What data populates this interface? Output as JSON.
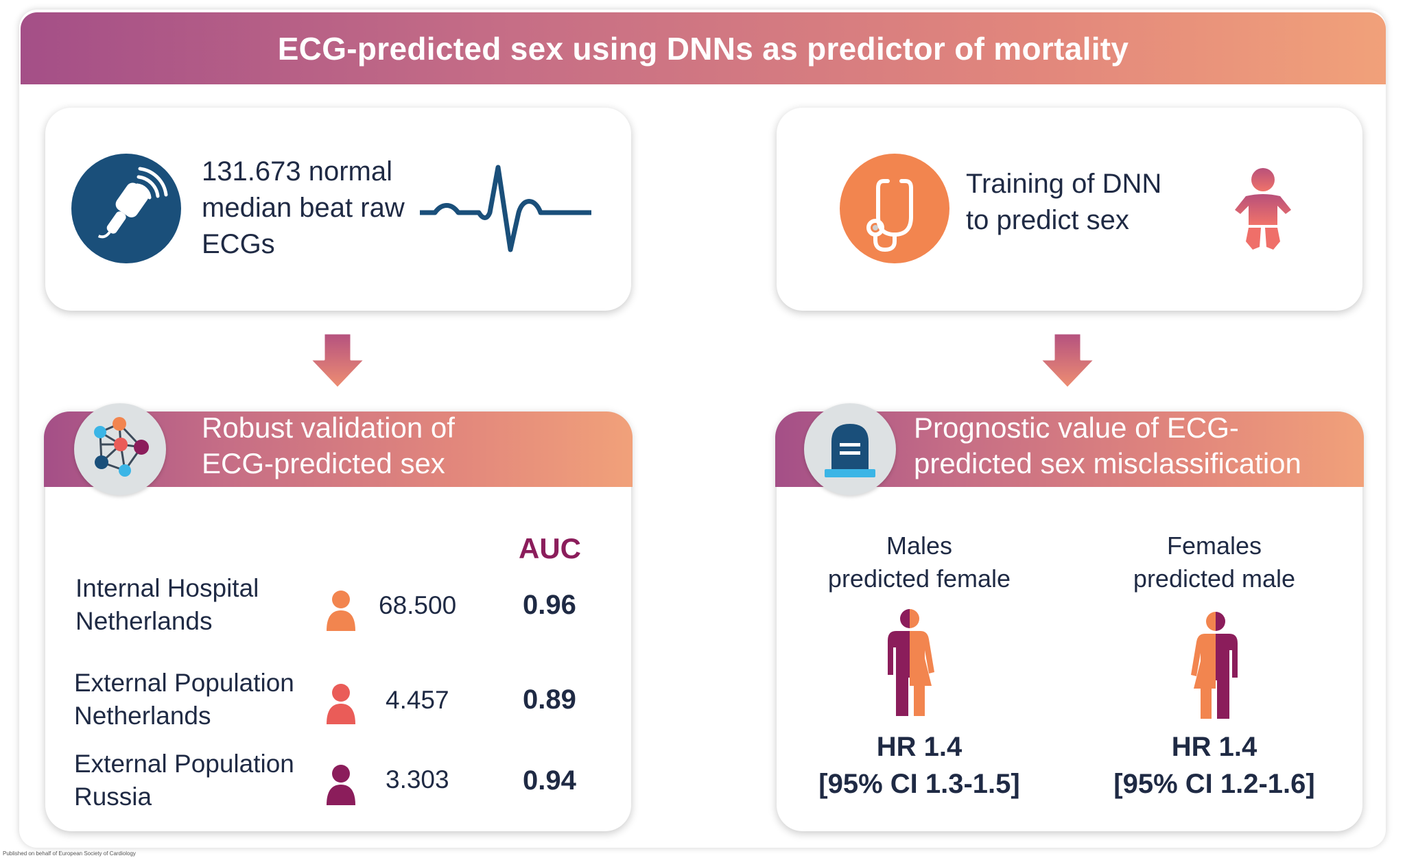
{
  "title": "ECG-predicted sex using DNNs as predictor of mortality",
  "top_left": {
    "lines": [
      "131.673 normal",
      "median beat raw",
      "ECGs"
    ],
    "icon": "ultrasound-probe-icon"
  },
  "top_right": {
    "lines": [
      "Training of DNN",
      "to predict sex"
    ],
    "icon": "stethoscope-icon"
  },
  "validation": {
    "heading_lines": [
      "Robust validation of",
      "ECG-predicted sex"
    ],
    "auc_label": "AUC",
    "rows": [
      {
        "label_lines": [
          "Internal Hospital",
          "Netherlands"
        ],
        "n": "68.500",
        "auc": "0.96",
        "color": "#f2854f"
      },
      {
        "label_lines": [
          "External Population",
          "Netherlands"
        ],
        "n": "4.457",
        "auc": "0.89",
        "color": "#ea5c58"
      },
      {
        "label_lines": [
          "External Population",
          "Russia"
        ],
        "n": "3.303",
        "auc": "0.94",
        "color": "#8b1d5b"
      }
    ]
  },
  "prognostic": {
    "heading_lines": [
      "Prognostic value of ECG-",
      "predicted sex misclassification"
    ],
    "groups": [
      {
        "label_lines": [
          "Males",
          "predicted female"
        ],
        "hr": "HR 1.4",
        "ci": "[95% CI 1.3-1.5]"
      },
      {
        "label_lines": [
          "Females",
          "predicted male"
        ],
        "hr": "HR 1.4",
        "ci": "[95% CI 1.2-1.6]"
      }
    ]
  },
  "colors": {
    "navy": "#1a4f7a",
    "orange": "#f2854f",
    "magenta": "#8b1d5b",
    "coral": "#ea5c58"
  },
  "footnote": "Published on behalf of European Society of Cardiology"
}
